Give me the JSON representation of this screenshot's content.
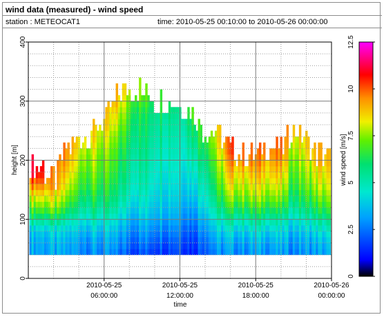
{
  "header": {
    "title": "wind data (measured) - wind speed",
    "station": "station : METEOCAT1",
    "time_range": "time: 2010-05-25 00:10:00 to 2010-05-26 00:00:00"
  },
  "chart_data": {
    "type": "heatmap",
    "xlabel": "time",
    "ylabel": "height [m]",
    "x_ticks": [
      {
        "hour": 6,
        "line1": "2010-05-25",
        "line2": "06:00:00"
      },
      {
        "hour": 12,
        "line1": "2010-05-25",
        "line2": "12:00:00"
      },
      {
        "hour": 18,
        "line1": "2010-05-25",
        "line2": "18:00:00"
      },
      {
        "hour": 24,
        "line1": "2010-05-26",
        "line2": "00:00:00"
      }
    ],
    "xlim_hours": [
      0,
      24
    ],
    "y_ticks": [
      0,
      100,
      200,
      300,
      400
    ],
    "ylim": [
      0,
      400
    ],
    "grid": true,
    "colorbar": {
      "label": "wind speed [m/s]",
      "ticks": [
        0,
        2.5,
        5,
        7.5,
        10,
        12.5
      ],
      "range": [
        0,
        12.5
      ]
    },
    "bin_start_height": 40,
    "bin_height_step": 10,
    "time_step_hours": 0.1667,
    "profiles": [
      {
        "hour": 0.17,
        "top": 180,
        "speeds": [
          3.5,
          3.5,
          3.6,
          3.8,
          4.3,
          5.2,
          6.1,
          6.8,
          7.5,
          8.1,
          8.7,
          9.4,
          10.0,
          10.5
        ]
      },
      {
        "hour": 1.0,
        "top": 190,
        "speeds": [
          3.3,
          3.4,
          3.6,
          3.9,
          4.4,
          5.2,
          6.1,
          6.9,
          7.6,
          8.2,
          8.8,
          9.5,
          10.1,
          10.6,
          10.9
        ]
      },
      {
        "hour": 2.0,
        "top": 160,
        "speeds": [
          3.2,
          3.3,
          3.5,
          3.8,
          4.3,
          5.2,
          6.0,
          6.9,
          7.5,
          8.0,
          8.4,
          8.9
        ]
      },
      {
        "hour": 3.0,
        "top": 210,
        "speeds": [
          3.1,
          3.2,
          3.4,
          3.7,
          4.1,
          4.7,
          5.4,
          6.1,
          6.7,
          7.2,
          7.6,
          8.0,
          8.3,
          8.6,
          8.9,
          9.1,
          9.3
        ]
      },
      {
        "hour": 4.0,
        "top": 230,
        "speeds": [
          3.1,
          3.2,
          3.4,
          3.7,
          4.1,
          4.5,
          5.0,
          5.5,
          5.9,
          6.3,
          6.6,
          6.9,
          7.1,
          7.3,
          7.6,
          7.8,
          8.0,
          8.2,
          8.4
        ]
      },
      {
        "hour": 5.0,
        "top": 240,
        "speeds": [
          2.9,
          3.1,
          3.3,
          3.7,
          4.1,
          4.6,
          5.1,
          5.5,
          5.9,
          6.2,
          6.5,
          6.8,
          7.0,
          7.2,
          7.4,
          7.6,
          7.7,
          7.9,
          8.1,
          8.3
        ]
      },
      {
        "hour": 6.0,
        "top": 260,
        "speeds": [
          2.8,
          3.0,
          3.2,
          3.5,
          3.9,
          4.3,
          4.8,
          5.2,
          5.6,
          5.9,
          6.2,
          6.4,
          6.6,
          6.8,
          7.0,
          7.1,
          7.2,
          7.4,
          7.6,
          7.8,
          8.0,
          8.3
        ]
      },
      {
        "hour": 7.0,
        "top": 300,
        "speeds": [
          2.5,
          2.8,
          3.0,
          3.3,
          3.6,
          4.0,
          4.4,
          4.8,
          5.1,
          5.4,
          5.6,
          5.8,
          6.0,
          6.1,
          6.3,
          6.4,
          6.5,
          6.6,
          6.8,
          7.0,
          7.2,
          7.5,
          7.8,
          8.0,
          8.3,
          8.6
        ]
      },
      {
        "hour": 8.0,
        "top": 320,
        "speeds": [
          2.2,
          2.5,
          2.7,
          3.0,
          3.3,
          3.6,
          3.9,
          4.2,
          4.5,
          4.8,
          5.0,
          5.2,
          5.4,
          5.5,
          5.6,
          5.7,
          5.8,
          6.0,
          6.1,
          6.3,
          6.4,
          6.6,
          6.7,
          6.9,
          7.1,
          7.3,
          7.6,
          7.9
        ]
      },
      {
        "hour": 9.0,
        "top": 310,
        "speeds": [
          2.0,
          2.3,
          2.6,
          2.9,
          3.2,
          3.5,
          3.8,
          4.1,
          4.3,
          4.5,
          4.7,
          4.9,
          5.0,
          5.1,
          5.2,
          5.3,
          5.4,
          5.5,
          5.6,
          5.7,
          5.8,
          5.9,
          6.0,
          6.1,
          6.3,
          6.6,
          7.0
        ]
      },
      {
        "hour": 10.0,
        "top": 300,
        "speeds": [
          2.1,
          2.4,
          2.7,
          3.0,
          3.3,
          3.6,
          3.9,
          4.1,
          4.3,
          4.5,
          4.6,
          4.8,
          4.9,
          5.0,
          5.1,
          5.2,
          5.3,
          5.4,
          5.5,
          5.6,
          5.7,
          5.8,
          5.9,
          6.0,
          6.2,
          6.4
        ]
      },
      {
        "hour": 11.0,
        "top": 290,
        "speeds": [
          2.0,
          2.2,
          2.5,
          2.8,
          3.1,
          3.4,
          3.7,
          3.9,
          4.1,
          4.3,
          4.4,
          4.6,
          4.7,
          4.8,
          4.9,
          5.0,
          5.1,
          5.2,
          5.3,
          5.4,
          5.5,
          5.6,
          5.7,
          5.9,
          6.1
        ]
      },
      {
        "hour": 12.0,
        "top": 290,
        "speeds": [
          2.2,
          2.4,
          2.6,
          2.9,
          3.1,
          3.4,
          3.6,
          3.8,
          4.0,
          4.2,
          4.3,
          4.4,
          4.5,
          4.6,
          4.7,
          4.8,
          4.9,
          5.0,
          5.0,
          5.1,
          5.2,
          5.3,
          5.4,
          5.5,
          5.7
        ]
      },
      {
        "hour": 13.0,
        "top": 280,
        "speeds": [
          1.5,
          1.7,
          1.9,
          2.1,
          2.4,
          2.7,
          3.0,
          3.2,
          3.5,
          3.8,
          4.0,
          4.2,
          4.4,
          4.6,
          4.8,
          5.0,
          5.2,
          5.4,
          5.6,
          5.8,
          6.0,
          6.2,
          6.4,
          6.8
        ]
      },
      {
        "hour": 14.0,
        "top": 240,
        "speeds": [
          2.6,
          2.8,
          3.0,
          3.3,
          3.6,
          3.9,
          4.2,
          4.5,
          4.8,
          5.0,
          5.2,
          5.4,
          5.6,
          5.8,
          6.0,
          6.2,
          6.4,
          6.6,
          6.8,
          7.0
        ]
      },
      {
        "hour": 15.0,
        "top": 240,
        "speeds": [
          2.8,
          3.0,
          3.3,
          3.6,
          4.0,
          4.4,
          4.8,
          5.2,
          5.6,
          5.9,
          6.2,
          6.5,
          6.7,
          6.9,
          7.1,
          7.3,
          7.5,
          7.7,
          7.9,
          8.1
        ]
      },
      {
        "hour": 16.0,
        "top": 220,
        "speeds": [
          3.0,
          3.2,
          3.5,
          3.9,
          4.4,
          5.0,
          5.6,
          6.2,
          6.8,
          7.3,
          7.7,
          8.1,
          8.4,
          8.7,
          9.0,
          9.3,
          9.6,
          9.9
        ]
      },
      {
        "hour": 17.0,
        "top": 200,
        "speeds": [
          3.0,
          3.2,
          3.5,
          3.9,
          4.4,
          5.0,
          5.6,
          6.2,
          6.8,
          7.3,
          7.7,
          8.0,
          8.3,
          8.6,
          8.9,
          9.2
        ]
      },
      {
        "hour": 18.0,
        "top": 200,
        "speeds": [
          3.1,
          3.3,
          3.6,
          4.0,
          4.5,
          5.1,
          5.7,
          6.3,
          6.9,
          7.4,
          7.8,
          8.1,
          8.4,
          8.7,
          9.0,
          9.3
        ]
      },
      {
        "hour": 19.0,
        "top": 220,
        "speeds": [
          3.2,
          3.4,
          3.7,
          4.1,
          4.6,
          5.2,
          5.8,
          6.4,
          7.0,
          7.5,
          7.9,
          8.2,
          8.5,
          8.8,
          9.0,
          9.2,
          9.4,
          9.6
        ]
      },
      {
        "hour": 20.0,
        "top": 210,
        "speeds": [
          3.0,
          3.2,
          3.5,
          3.8,
          4.2,
          4.7,
          5.3,
          5.9,
          6.5,
          7.0,
          7.4,
          7.8,
          8.1,
          8.4,
          8.7,
          9.0,
          9.3
        ]
      },
      {
        "hour": 21.0,
        "top": 250,
        "speeds": [
          2.9,
          3.1,
          3.3,
          3.6,
          4.0,
          4.4,
          4.9,
          5.3,
          5.7,
          6.0,
          6.3,
          6.6,
          6.8,
          7.0,
          7.2,
          7.4,
          7.6,
          7.8,
          8.0,
          8.2,
          8.5
        ]
      },
      {
        "hour": 22.0,
        "top": 230,
        "speeds": [
          3.0,
          3.2,
          3.4,
          3.7,
          4.1,
          4.6,
          5.1,
          5.6,
          6.0,
          6.4,
          6.7,
          7.0,
          7.2,
          7.4,
          7.6,
          7.8,
          8.0,
          8.2,
          8.4
        ]
      },
      {
        "hour": 23.0,
        "top": 200,
        "speeds": [
          3.2,
          3.4,
          3.7,
          4.1,
          4.6,
          5.1,
          5.7,
          6.2,
          6.7,
          7.1,
          7.5,
          7.8,
          8.1,
          8.3,
          8.5,
          8.8
        ]
      },
      {
        "hour": 24.0,
        "top": 200,
        "speeds": [
          3.3,
          3.5,
          3.8,
          4.2,
          4.7,
          5.2,
          5.8,
          6.3,
          6.8,
          7.2,
          7.5,
          7.8,
          8.0,
          8.2,
          8.4,
          8.6
        ]
      }
    ]
  }
}
